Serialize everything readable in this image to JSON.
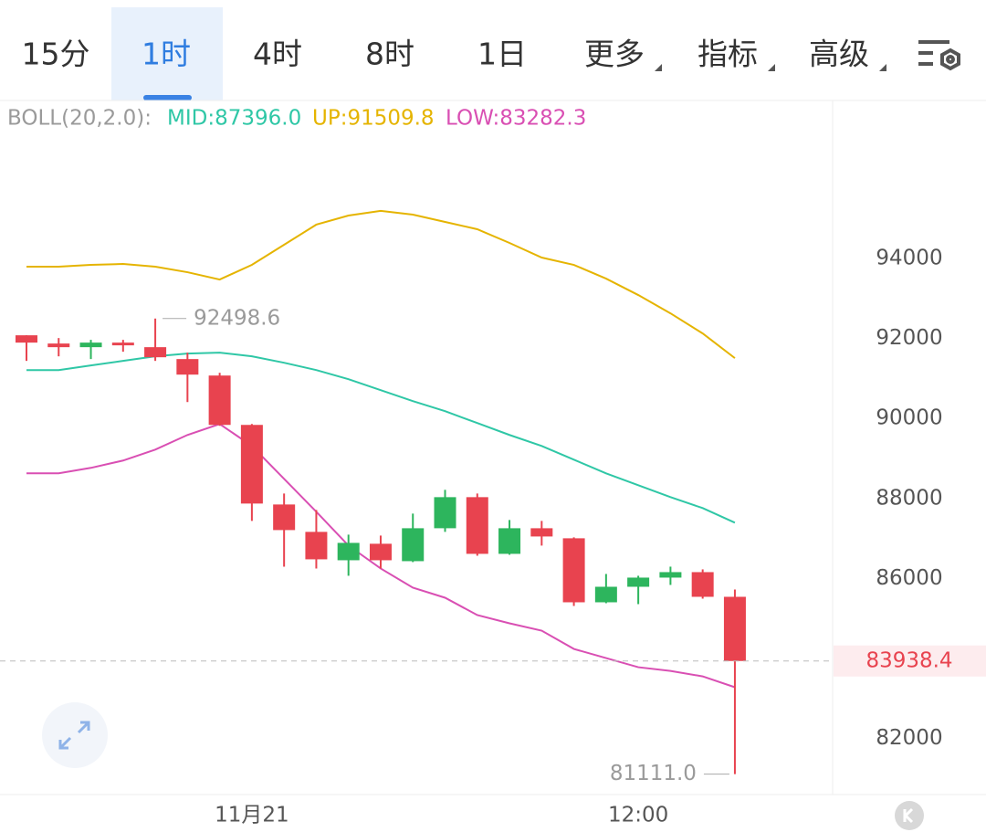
{
  "toolbar": {
    "tabs": [
      "15分",
      "1时",
      "4时",
      "8时",
      "1日",
      "更多",
      "指标",
      "高级"
    ],
    "active": 1
  },
  "chart_data": {
    "type": "candlestick",
    "indicator": "BOLL(20,2.0):",
    "categories": [
      null,
      null,
      null,
      null,
      null,
      null,
      null,
      "11月21",
      null,
      null,
      null,
      null,
      null,
      null,
      null,
      null,
      null,
      null,
      null,
      "12:00",
      null,
      null,
      null
    ],
    "open": [
      92080,
      91874,
      91783,
      91897,
      91783,
      91486,
      91074,
      89840,
      87851,
      87166,
      86457,
      86869,
      86434,
      87257,
      88034,
      86617,
      87257,
      87006,
      85406,
      85794,
      86023,
      86160,
      85543
    ],
    "high": [
      92080,
      92011,
      91966,
      91966,
      92498.6,
      91646,
      91143,
      89863,
      88126,
      87714,
      87097,
      87074,
      87623,
      88217,
      88126,
      87463,
      87440,
      87029,
      86114,
      86069,
      86297,
      86229,
      85726
    ],
    "low": [
      91440,
      91554,
      91486,
      91669,
      91440,
      90411,
      89817,
      87440,
      86297,
      86251,
      86069,
      86251,
      86411,
      87166,
      86571,
      86594,
      86823,
      85314,
      85383,
      85360,
      85840,
      85497,
      81111.0
    ],
    "close": [
      91897,
      91783,
      91897,
      91829,
      91531,
      91097,
      89840,
      87874,
      87211,
      86480,
      86891,
      86457,
      87257,
      88034,
      86617,
      87257,
      87051,
      85406,
      85794,
      86023,
      86160,
      85543,
      83938.4
    ],
    "up_color": "#2db55d",
    "down_color": "#e8434f",
    "max_label": "92498.6",
    "min_label": "81111.0",
    "last_label": "83938.4",
    "series": [
      {
        "name": "MID:87396.0",
        "color": "#2fc7a6",
        "values": [
          91211,
          91211,
          91326,
          91440,
          91554,
          91623,
          91646,
          91554,
          91394,
          91211,
          90983,
          90709,
          90434,
          90183,
          89886,
          89589,
          89314,
          88971,
          88629,
          88331,
          88034,
          87760,
          87396.0
        ]
      },
      {
        "name": "UP:91509.8",
        "color": "#e5b400",
        "values": [
          93794,
          93794,
          93840,
          93863,
          93794,
          93657,
          93474,
          93840,
          94343,
          94846,
          95074,
          95189,
          95097,
          94914,
          94731,
          94389,
          94023,
          93840,
          93497,
          93086,
          92629,
          92126,
          91509.8
        ]
      },
      {
        "name": "LOW:83282.3",
        "color": "#d94fb3",
        "values": [
          88629,
          88629,
          88766,
          88949,
          89223,
          89589,
          89863,
          89314,
          88491,
          87669,
          86823,
          86251,
          85771,
          85520,
          85086,
          84880,
          84697,
          84240,
          84011,
          83783,
          83691,
          83554,
          83282.3
        ]
      }
    ],
    "ylim": [
      80600,
      97950
    ],
    "yticks": [
      82000,
      86000,
      88000,
      90000,
      92000,
      94000
    ]
  }
}
